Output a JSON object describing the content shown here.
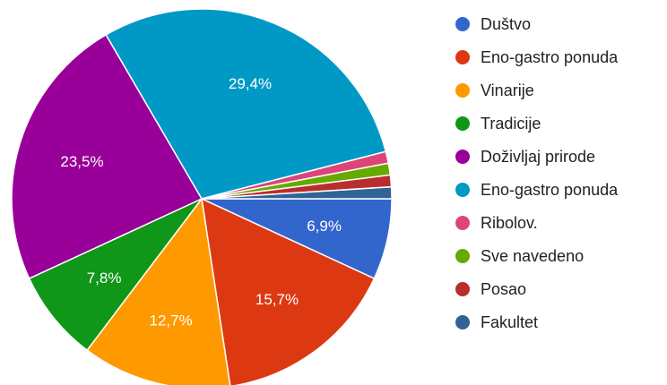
{
  "chart_data": {
    "type": "pie",
    "legend_position": "right",
    "slices": [
      {
        "label": "Duštvo",
        "value": 6.9,
        "value_label": "6,9%",
        "color": "#3366cc"
      },
      {
        "label": "Eno-gastro ponuda",
        "value": 15.7,
        "value_label": "15,7%",
        "color": "#dc3912"
      },
      {
        "label": "Vinarije",
        "value": 12.7,
        "value_label": "12,7%",
        "color": "#ff9900"
      },
      {
        "label": "Tradicije",
        "value": 7.8,
        "value_label": "7,8%",
        "color": "#109618"
      },
      {
        "label": "Doživljaj prirode",
        "value": 23.5,
        "value_label": "23,5%",
        "color": "#990099"
      },
      {
        "label": "Eno-gastro ponuda",
        "value": 29.4,
        "value_label": "29,4%",
        "color": "#0099c6"
      },
      {
        "label": "Ribolov.",
        "value": 1.0,
        "value_label": "",
        "color": "#dd4477"
      },
      {
        "label": "Sve navedeno",
        "value": 1.0,
        "value_label": "",
        "color": "#66aa00"
      },
      {
        "label": "Posao",
        "value": 1.0,
        "value_label": "",
        "color": "#b82e2e"
      },
      {
        "label": "Fakultet",
        "value": 1.0,
        "value_label": "",
        "color": "#316395"
      }
    ]
  }
}
